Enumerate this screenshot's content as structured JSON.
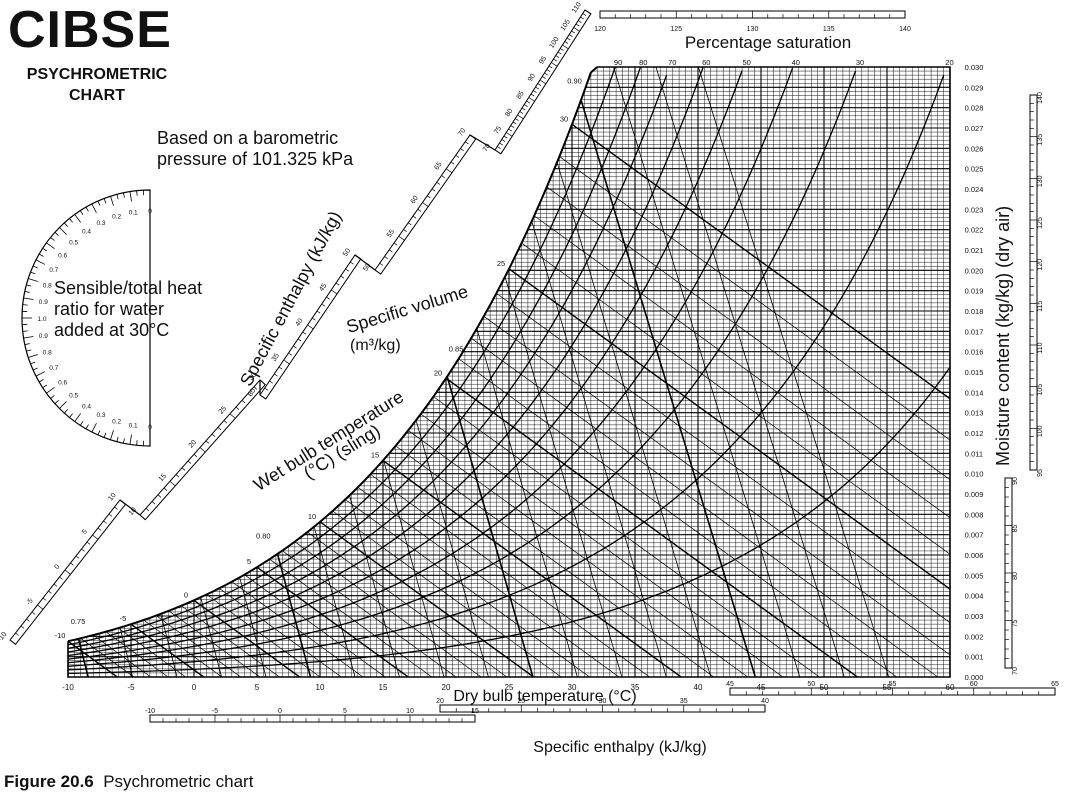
{
  "brand": {
    "title": "CIBSE",
    "subtitle_line1": "PSYCHROMETRIC",
    "subtitle_line2": "CHART"
  },
  "notes": {
    "pressure_line1": "Based on a barometric",
    "pressure_line2": "pressure of 101.325 kPa",
    "protractor_line1": "Sensible/total heat",
    "protractor_line2": "ratio for water",
    "protractor_line3": "added at 30°C"
  },
  "caption": {
    "figure": "Figure 20.6",
    "text": "Psychrometric chart"
  },
  "chart_data": {
    "type": "line",
    "title": "Percentage saturation",
    "xlabel": "Dry bulb temperature (°C)",
    "ylabel": "Moisture content (kg/kg) (dry air)",
    "xlim": [
      -10,
      60
    ],
    "ylim": [
      0,
      0.03
    ],
    "x_ticks": [
      -10,
      -5,
      0,
      5,
      10,
      15,
      20,
      25,
      30,
      35,
      40,
      45,
      50,
      55,
      60
    ],
    "y_ticks": [
      "0.000",
      "0.001",
      "0.002",
      "0.003",
      "0.004",
      "0.005",
      "0.006",
      "0.007",
      "0.008",
      "0.009",
      "0.010",
      "0.011",
      "0.012",
      "0.013",
      "0.014",
      "0.015",
      "0.016",
      "0.017",
      "0.018",
      "0.019",
      "0.020",
      "0.021",
      "0.022",
      "0.023",
      "0.024",
      "0.025",
      "0.026",
      "0.027",
      "0.028",
      "0.029",
      "0.030"
    ],
    "saturation_percent_labels": [
      90,
      80,
      70,
      60,
      50,
      40,
      30,
      20
    ],
    "saturation_curve_wet_bulb_labels": [
      -10,
      -5,
      0,
      5,
      10,
      15,
      20,
      25,
      30
    ],
    "specific_volume_labels": [
      "0.75",
      "0.80",
      "0.85",
      "0.90"
    ],
    "axis_labels": {
      "wet_bulb": "Wet bulb temperature (°C) (sling)",
      "specific_volume": "Specific volume (m³/kg)",
      "enthalpy_diag": "Specific enthalpy (kJ/kg)",
      "enthalpy_bottom": "Specific enthalpy (kJ/kg)"
    },
    "enthalpy_diagonal_scale": [
      -10,
      -5,
      0,
      5,
      10,
      15,
      20,
      25,
      30,
      35,
      40,
      45,
      50,
      55,
      60,
      65,
      70,
      75,
      80,
      85,
      90,
      95,
      100,
      105,
      110
    ],
    "enthalpy_top_scale": [
      120,
      125,
      130,
      135,
      140
    ],
    "enthalpy_right_scale": [
      70,
      75,
      80,
      85,
      90,
      95,
      100,
      105,
      110,
      115,
      120,
      125,
      130,
      135,
      140
    ],
    "enthalpy_bottom_scale_1": [
      -10,
      -5,
      0,
      5,
      10,
      15
    ],
    "enthalpy_bottom_scale_2": [
      20,
      25,
      30,
      35,
      40
    ],
    "enthalpy_bottom_scale_3": [
      45,
      50,
      55,
      60,
      65
    ],
    "protractor_labels": [
      "0",
      "0.1",
      "0.2",
      "0.3",
      "0.4",
      "0.5",
      "0.6",
      "0.7",
      "0.8",
      "0.9",
      "1.0",
      "0.9",
      "0.8",
      "0.7",
      "0.6",
      "0.5",
      "0.4",
      "0.3",
      "0.2",
      "0.1",
      "0"
    ],
    "grid": true,
    "legend": "none"
  }
}
